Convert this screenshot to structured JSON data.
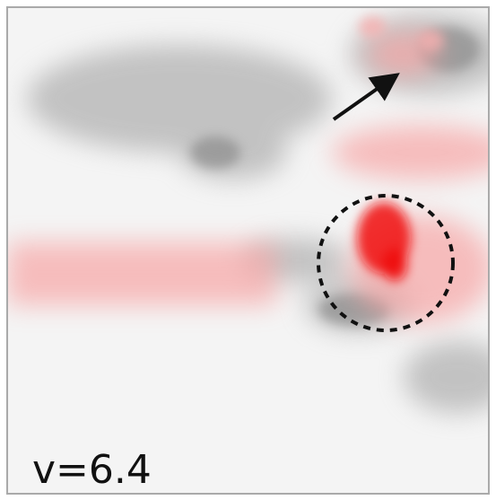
{
  "label": "v=6.4"
}
